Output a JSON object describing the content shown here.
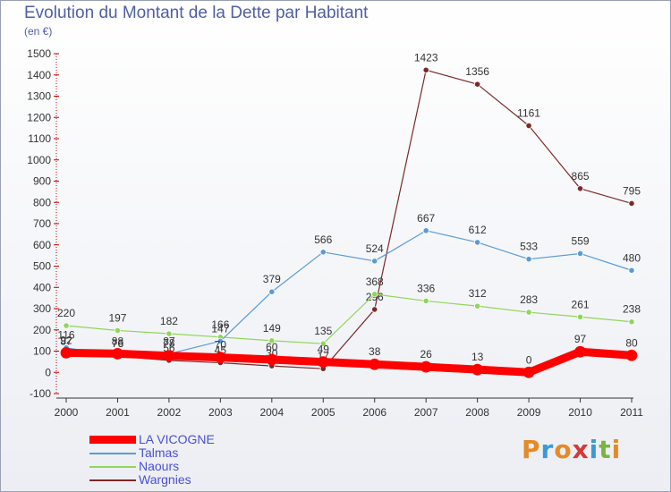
{
  "header": {
    "title": "Evolution du Montant de la Dette par Habitant",
    "subtitle": "(en €)"
  },
  "logo": {
    "text": "Proxiti",
    "colors": [
      "#e58a25",
      "#3a9ad9",
      "#e58a25",
      "#d23b3b",
      "#3a9ad9",
      "#7cb342",
      "#e58a25"
    ]
  },
  "chart_data": {
    "type": "line",
    "title": "Evolution du Montant de la Dette par Habitant",
    "subtitle": "(en €)",
    "x": [
      "2000",
      "2001",
      "2002",
      "2003",
      "2004",
      "2005",
      "2006",
      "2007",
      "2008",
      "2009",
      "2010",
      "2011"
    ],
    "ylim": [
      -100,
      1500
    ],
    "yticks": [
      -100,
      0,
      100,
      200,
      300,
      400,
      500,
      600,
      700,
      800,
      900,
      1000,
      1100,
      1200,
      1300,
      1400,
      1500
    ],
    "grid": false,
    "legend_position": "bottom-left",
    "series": [
      {
        "name": "LA VICOGNE",
        "color": "#ff0000",
        "width": 9,
        "values": [
          92,
          88,
          78,
          70,
          60,
          49,
          38,
          26,
          13,
          0,
          97,
          80
        ],
        "labels": [
          "92",
          "88",
          "78",
          "70",
          "60",
          "49",
          "38",
          "26",
          "13",
          "0",
          "97",
          "80"
        ]
      },
      {
        "name": "Talmas",
        "color": "#5b9bd5",
        "width": 1.2,
        "values": [
          116,
          76,
          87,
          147,
          379,
          566,
          524,
          667,
          612,
          533,
          559,
          480
        ],
        "labels": [
          "116",
          "76",
          "87",
          "147",
          "379",
          "566",
          "524",
          "667",
          "612",
          "533",
          "559",
          "480"
        ]
      },
      {
        "name": "Naours",
        "color": "#8fd65a",
        "width": 1.2,
        "values": [
          220,
          197,
          182,
          166,
          149,
          135,
          368,
          336,
          312,
          283,
          261,
          238
        ],
        "labels": [
          "220",
          "197",
          "182",
          "166",
          "149",
          "135",
          "368",
          "336",
          "312",
          "283",
          "261",
          "238"
        ]
      },
      {
        "name": "Wargnies",
        "color": "#7a2a2a",
        "width": 1.2,
        "values": [
          87,
          76,
          56,
          45,
          30,
          17,
          296,
          1423,
          1356,
          1161,
          865,
          795
        ],
        "labels": [
          "87",
          "76",
          "56",
          "45",
          "30",
          "17",
          "296",
          "1423",
          "1356",
          "1161",
          "865",
          "795"
        ]
      }
    ]
  }
}
